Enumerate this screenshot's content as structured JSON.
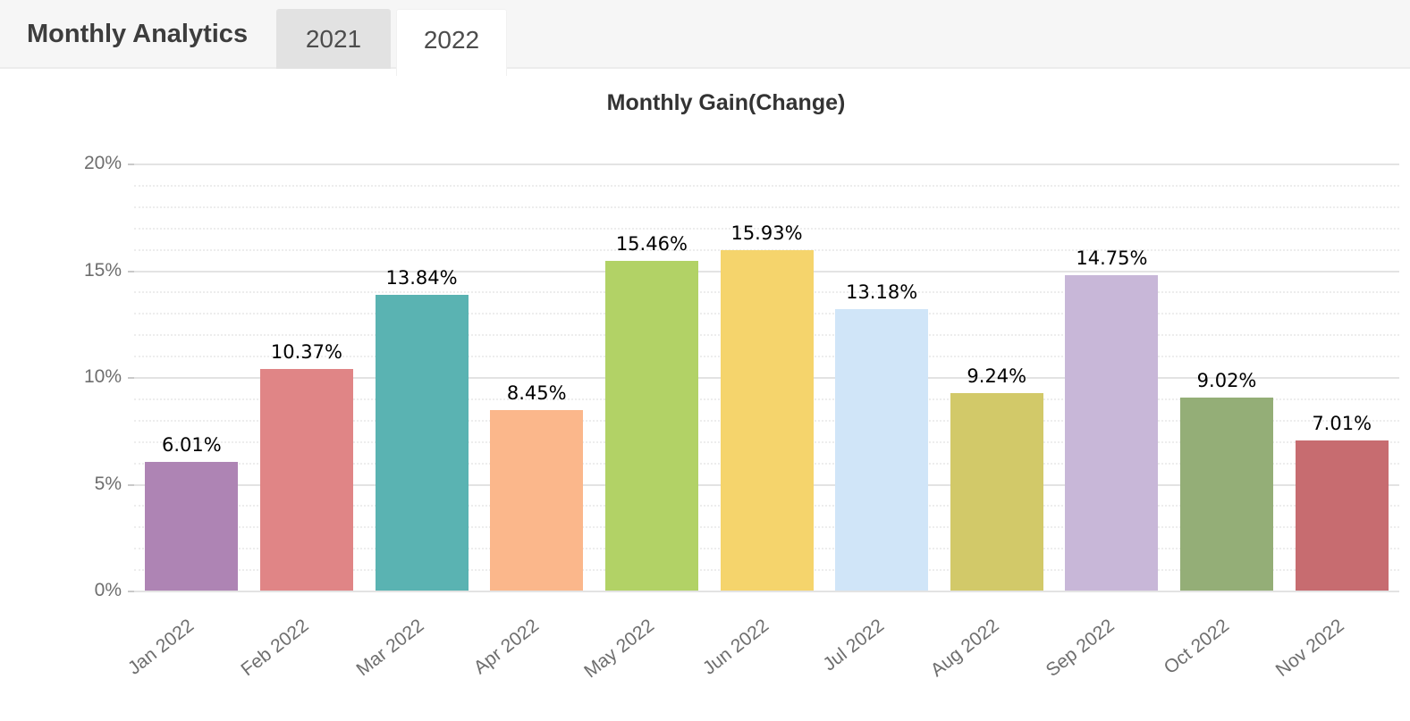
{
  "header": {
    "title": "Monthly Analytics",
    "tabs": [
      {
        "label": "2021",
        "active": false
      },
      {
        "label": "2022",
        "active": true
      }
    ]
  },
  "chart_data": {
    "type": "bar",
    "title": "Monthly Gain(Change)",
    "categories": [
      "Jan 2022",
      "Feb 2022",
      "Mar 2022",
      "Apr 2022",
      "May 2022",
      "Jun 2022",
      "Jul 2022",
      "Aug 2022",
      "Sep 2022",
      "Oct 2022",
      "Nov 2022"
    ],
    "values": [
      6.01,
      10.37,
      13.84,
      8.45,
      15.46,
      15.93,
      13.18,
      9.24,
      14.75,
      9.02,
      7.01
    ],
    "value_labels": [
      "6.01%",
      "10.37%",
      "13.84%",
      "8.45%",
      "15.46%",
      "15.93%",
      "13.18%",
      "9.24%",
      "14.75%",
      "9.02%",
      "7.01%"
    ],
    "bar_colors": [
      "#ae84b4",
      "#e08586",
      "#5ab3b2",
      "#fbb78b",
      "#b2d266",
      "#f5d46c",
      "#d0e5f8",
      "#d2c969",
      "#c8b7d8",
      "#94ae77",
      "#c76c70"
    ],
    "xlabel": "",
    "ylabel": "",
    "y_ticks": [
      "0%",
      "5%",
      "10%",
      "15%",
      "20%"
    ],
    "ylim": [
      0,
      20
    ],
    "grid": true,
    "minor_grid_step": 1,
    "major_grid_step": 5,
    "legend_position": "none"
  }
}
